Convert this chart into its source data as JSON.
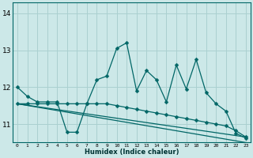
{
  "xlabel": "Humidex (Indice chaleur)",
  "bg_color": "#cce8e8",
  "grid_color": "#aad0d0",
  "line_color": "#006666",
  "xlim": [
    -0.5,
    23.5
  ],
  "ylim": [
    10.5,
    14.3
  ],
  "yticks": [
    11,
    12,
    13,
    14
  ],
  "xticks": [
    0,
    1,
    2,
    3,
    4,
    5,
    6,
    7,
    8,
    9,
    10,
    11,
    12,
    13,
    14,
    15,
    16,
    17,
    18,
    19,
    20,
    21,
    22,
    23
  ],
  "series1_x": [
    0,
    1,
    2,
    3,
    4,
    5,
    6,
    7,
    8,
    9,
    10,
    11,
    12,
    13,
    14,
    15,
    16,
    17,
    18,
    19,
    20,
    21,
    22,
    23
  ],
  "series1_y": [
    12.0,
    11.75,
    11.6,
    11.6,
    11.6,
    10.78,
    10.78,
    11.55,
    12.2,
    12.3,
    13.05,
    13.2,
    11.9,
    12.45,
    12.2,
    11.6,
    12.6,
    11.95,
    12.75,
    11.85,
    11.55,
    11.35,
    10.75,
    10.62
  ],
  "series2_x": [
    0,
    1,
    2,
    3,
    4,
    5,
    6,
    7,
    8,
    9,
    10,
    11,
    12,
    13,
    14,
    15,
    16,
    17,
    18,
    19,
    20,
    21,
    22,
    23
  ],
  "series2_y": [
    11.55,
    11.55,
    11.55,
    11.55,
    11.55,
    11.55,
    11.55,
    11.55,
    11.55,
    11.55,
    11.5,
    11.45,
    11.4,
    11.35,
    11.3,
    11.25,
    11.2,
    11.15,
    11.1,
    11.05,
    11.0,
    10.95,
    10.82,
    10.65
  ],
  "trend1_x": [
    0,
    23
  ],
  "trend1_y": [
    11.55,
    10.65
  ],
  "trend2_x": [
    0,
    23
  ],
  "trend2_y": [
    11.55,
    10.5
  ],
  "xlabel_fontsize": 6,
  "ylabel_fontsize": 7,
  "xtick_fontsize": 4.5,
  "ytick_fontsize": 6.5
}
